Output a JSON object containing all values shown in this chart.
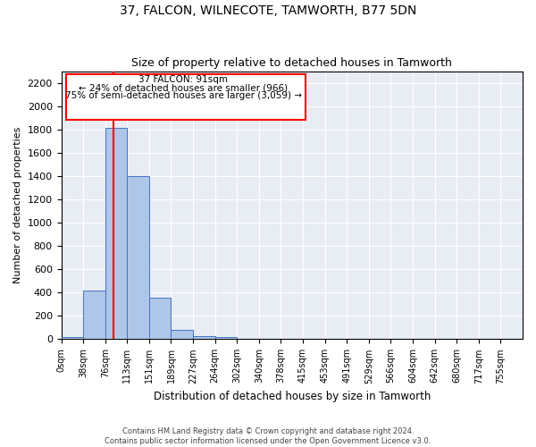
{
  "title": "37, FALCON, WILNECOTE, TAMWORTH, B77 5DN",
  "subtitle": "Size of property relative to detached houses in Tamworth",
  "xlabel": "Distribution of detached houses by size in Tamworth",
  "ylabel": "Number of detached properties",
  "bar_labels": [
    "0sqm",
    "38sqm",
    "76sqm",
    "113sqm",
    "151sqm",
    "189sqm",
    "227sqm",
    "264sqm",
    "302sqm",
    "340sqm",
    "378sqm",
    "415sqm",
    "453sqm",
    "491sqm",
    "529sqm",
    "566sqm",
    "604sqm",
    "642sqm",
    "680sqm",
    "717sqm",
    "755sqm"
  ],
  "bar_values": [
    15,
    420,
    1810,
    1400,
    355,
    80,
    25,
    20,
    0,
    0,
    0,
    0,
    0,
    0,
    0,
    0,
    0,
    0,
    0,
    0,
    0
  ],
  "bar_color": "#aec6e8",
  "bar_edge_color": "#4472c4",
  "background_color": "#e8edf4",
  "ylim": [
    0,
    2300
  ],
  "yticks": [
    0,
    200,
    400,
    600,
    800,
    1000,
    1200,
    1400,
    1600,
    1800,
    2000,
    2200
  ],
  "annotation_text_line1": "37 FALCON: 91sqm",
  "annotation_text_line2": "← 24% of detached houses are smaller (966)",
  "annotation_text_line3": "75% of semi-detached houses are larger (3,059) →",
  "footer_line1": "Contains HM Land Registry data © Crown copyright and database right 2024.",
  "footer_line2": "Contains public sector information licensed under the Open Government Licence v3.0.",
  "property_sqm": 91,
  "bin_width": 38,
  "n_bins": 21
}
